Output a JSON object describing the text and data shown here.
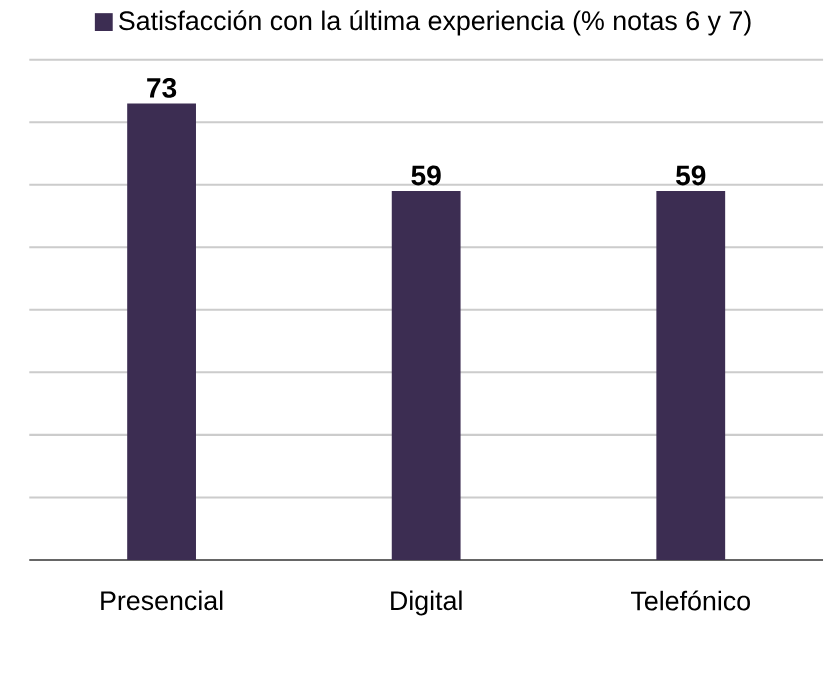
{
  "chart_data": {
    "type": "bar",
    "categories": [
      "Presencial",
      "Digital",
      "Telefónico"
    ],
    "series": [
      {
        "name": "Satisfacción con la última experiencia (% notas 6 y 7)",
        "color": "#3c2d52",
        "values": [
          73,
          59,
          59
        ]
      }
    ],
    "ylim": [
      0,
      80
    ],
    "yticks": [
      {
        "value": 0,
        "label": null
      },
      {
        "value": 10,
        "label": null
      },
      {
        "value": 20,
        "label": null
      },
      {
        "value": 30,
        "label": null
      },
      {
        "value": 40,
        "label": null
      },
      {
        "value": 50,
        "label": null
      },
      {
        "value": 60,
        "label": null
      },
      {
        "value": 70,
        "label": null
      },
      {
        "value": 80,
        "label": null
      }
    ],
    "tick_labels": "x",
    "grid": "y",
    "legend": "top",
    "data_labels": true
  }
}
